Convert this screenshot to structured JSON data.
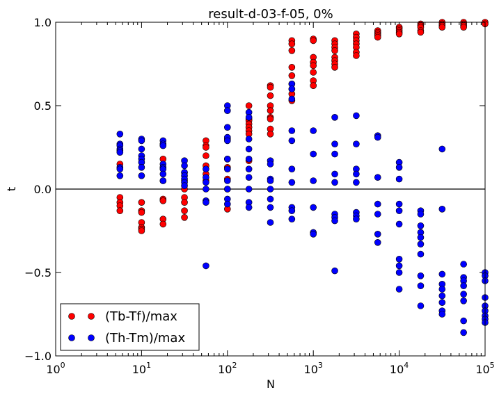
{
  "chart_data": {
    "type": "scatter",
    "title": "result-d-03-f-05, 0%",
    "xlabel": "N",
    "ylabel": "t",
    "xscale": "log",
    "xlim": [
      1,
      100000
    ],
    "ylim": [
      -1.0,
      1.0
    ],
    "x_tick_values": [
      1,
      10,
      100,
      1000,
      10000,
      100000
    ],
    "x_tick_labels": [
      {
        "base": "10",
        "exp": "0"
      },
      {
        "base": "10",
        "exp": "1"
      },
      {
        "base": "10",
        "exp": "2"
      },
      {
        "base": "10",
        "exp": "3"
      },
      {
        "base": "10",
        "exp": "4"
      },
      {
        "base": "10",
        "exp": "5"
      }
    ],
    "y_tick_values": [
      -1.0,
      -0.5,
      0.0,
      0.5,
      1.0
    ],
    "y_tick_labels": [
      "−1.0",
      "−0.5",
      "0.0",
      "0.5",
      "1.0"
    ],
    "reference_line_y": 0,
    "grid": false,
    "legend_position": "lower-left",
    "series": [
      {
        "name": "(Tb-Tf)/max",
        "color": "#ff0000",
        "points": [
          [
            5.6,
            0.15
          ],
          [
            5.6,
            -0.05
          ],
          [
            5.6,
            -0.08
          ],
          [
            5.6,
            -0.1
          ],
          [
            5.6,
            -0.13
          ],
          [
            10,
            -0.08
          ],
          [
            10,
            -0.13
          ],
          [
            10,
            -0.14
          ],
          [
            10,
            -0.2
          ],
          [
            10,
            -0.23
          ],
          [
            10,
            -0.24
          ],
          [
            10,
            -0.25
          ],
          [
            17.8,
            0.18
          ],
          [
            17.8,
            0.05
          ],
          [
            17.8,
            -0.06
          ],
          [
            17.8,
            -0.07
          ],
          [
            17.8,
            -0.18
          ],
          [
            17.8,
            -0.21
          ],
          [
            31.6,
            0.1
          ],
          [
            31.6,
            0.05
          ],
          [
            31.6,
            0.0
          ],
          [
            31.6,
            -0.05
          ],
          [
            31.6,
            -0.08
          ],
          [
            31.6,
            -0.13
          ],
          [
            31.6,
            -0.17
          ],
          [
            56.2,
            0.29
          ],
          [
            56.2,
            0.26
          ],
          [
            56.2,
            0.25
          ],
          [
            56.2,
            0.2
          ],
          [
            56.2,
            0.14
          ],
          [
            56.2,
            0.09
          ],
          [
            56.2,
            0.05
          ],
          [
            100,
            0.3
          ],
          [
            100,
            0.18
          ],
          [
            100,
            0.13
          ],
          [
            100,
            0.06
          ],
          [
            100,
            0.0
          ],
          [
            100,
            -0.12
          ],
          [
            177.8,
            0.5
          ],
          [
            177.8,
            0.42
          ],
          [
            177.8,
            0.41
          ],
          [
            177.8,
            0.39
          ],
          [
            177.8,
            0.37
          ],
          [
            177.8,
            0.35
          ],
          [
            177.8,
            0.33
          ],
          [
            177.8,
            0.17
          ],
          [
            316.2,
            0.62
          ],
          [
            316.2,
            0.61
          ],
          [
            316.2,
            0.56
          ],
          [
            316.2,
            0.5
          ],
          [
            316.2,
            0.47
          ],
          [
            316.2,
            0.43
          ],
          [
            316.2,
            0.42
          ],
          [
            316.2,
            0.36
          ],
          [
            316.2,
            0.33
          ],
          [
            562.3,
            0.89
          ],
          [
            562.3,
            0.87
          ],
          [
            562.3,
            0.83
          ],
          [
            562.3,
            0.73
          ],
          [
            562.3,
            0.68
          ],
          [
            562.3,
            0.63
          ],
          [
            562.3,
            0.6
          ],
          [
            562.3,
            0.57
          ],
          [
            562.3,
            0.53
          ],
          [
            1000,
            0.9
          ],
          [
            1000,
            0.89
          ],
          [
            1000,
            0.79
          ],
          [
            1000,
            0.76
          ],
          [
            1000,
            0.74
          ],
          [
            1000,
            0.7
          ],
          [
            1000,
            0.65
          ],
          [
            1000,
            0.62
          ],
          [
            1778,
            0.89
          ],
          [
            1778,
            0.87
          ],
          [
            1778,
            0.85
          ],
          [
            1778,
            0.83
          ],
          [
            1778,
            0.79
          ],
          [
            1778,
            0.77
          ],
          [
            1778,
            0.75
          ],
          [
            1778,
            0.73
          ],
          [
            3162,
            0.93
          ],
          [
            3162,
            0.91
          ],
          [
            3162,
            0.89
          ],
          [
            3162,
            0.87
          ],
          [
            3162,
            0.85
          ],
          [
            3162,
            0.82
          ],
          [
            3162,
            0.8
          ],
          [
            5623,
            0.95
          ],
          [
            5623,
            0.94
          ],
          [
            5623,
            0.93
          ],
          [
            5623,
            0.92
          ],
          [
            5623,
            0.91
          ],
          [
            10000,
            0.97
          ],
          [
            10000,
            0.96
          ],
          [
            10000,
            0.95
          ],
          [
            10000,
            0.94
          ],
          [
            10000,
            0.93
          ],
          [
            17783,
            0.99
          ],
          [
            17783,
            0.98
          ],
          [
            17783,
            0.97
          ],
          [
            17783,
            0.95
          ],
          [
            17783,
            0.94
          ],
          [
            31623,
            1.0
          ],
          [
            31623,
            0.99
          ],
          [
            31623,
            0.98
          ],
          [
            31623,
            0.97
          ],
          [
            56234,
            1.0
          ],
          [
            56234,
            0.99
          ],
          [
            56234,
            0.98
          ],
          [
            56234,
            0.97
          ],
          [
            100000,
            1.0
          ],
          [
            100000,
            0.99
          ]
        ]
      },
      {
        "name": "(Th-Tm)/max",
        "color": "#0000ff",
        "points": [
          [
            5.6,
            0.33
          ],
          [
            5.6,
            0.27
          ],
          [
            5.6,
            0.26
          ],
          [
            5.6,
            0.24
          ],
          [
            5.6,
            0.23
          ],
          [
            5.6,
            0.22
          ],
          [
            5.6,
            0.13
          ],
          [
            5.6,
            0.12
          ],
          [
            5.6,
            0.08
          ],
          [
            10,
            0.3
          ],
          [
            10,
            0.29
          ],
          [
            10,
            0.24
          ],
          [
            10,
            0.2
          ],
          [
            10,
            0.18
          ],
          [
            10,
            0.16
          ],
          [
            10,
            0.13
          ],
          [
            10,
            0.08
          ],
          [
            17.8,
            0.29
          ],
          [
            17.8,
            0.27
          ],
          [
            17.8,
            0.26
          ],
          [
            17.8,
            0.15
          ],
          [
            17.8,
            0.13
          ],
          [
            17.8,
            0.12
          ],
          [
            17.8,
            0.09
          ],
          [
            17.8,
            0.05
          ],
          [
            31.6,
            0.17
          ],
          [
            31.6,
            0.14
          ],
          [
            31.6,
            0.1
          ],
          [
            31.6,
            0.08
          ],
          [
            31.6,
            0.06
          ],
          [
            31.6,
            0.04
          ],
          [
            31.6,
            0.02
          ],
          [
            56.2,
            0.12
          ],
          [
            56.2,
            0.07
          ],
          [
            56.2,
            0.04
          ],
          [
            56.2,
            0.0
          ],
          [
            56.2,
            -0.07
          ],
          [
            56.2,
            -0.08
          ],
          [
            56.2,
            -0.46
          ],
          [
            100,
            0.5
          ],
          [
            100,
            0.47
          ],
          [
            100,
            0.37
          ],
          [
            100,
            0.31
          ],
          [
            100,
            0.29
          ],
          [
            100,
            0.18
          ],
          [
            100,
            0.12
          ],
          [
            100,
            0.05
          ],
          [
            100,
            0.0
          ],
          [
            100,
            -0.06
          ],
          [
            100,
            -0.09
          ],
          [
            177.8,
            0.46
          ],
          [
            177.8,
            0.43
          ],
          [
            177.8,
            0.3
          ],
          [
            177.8,
            0.24
          ],
          [
            177.8,
            0.18
          ],
          [
            177.8,
            0.12
          ],
          [
            177.8,
            0.07
          ],
          [
            177.8,
            0.0
          ],
          [
            177.8,
            -0.08
          ],
          [
            177.8,
            -0.11
          ],
          [
            316.2,
            0.17
          ],
          [
            316.2,
            0.15
          ],
          [
            316.2,
            0.06
          ],
          [
            316.2,
            0.05
          ],
          [
            316.2,
            0.0
          ],
          [
            316.2,
            -0.06
          ],
          [
            316.2,
            -0.11
          ],
          [
            316.2,
            -0.2
          ],
          [
            562.3,
            0.63
          ],
          [
            562.3,
            0.6
          ],
          [
            562.3,
            0.54
          ],
          [
            562.3,
            0.35
          ],
          [
            562.3,
            0.29
          ],
          [
            562.3,
            0.12
          ],
          [
            562.3,
            0.04
          ],
          [
            562.3,
            -0.11
          ],
          [
            562.3,
            -0.13
          ],
          [
            562.3,
            -0.18
          ],
          [
            1000,
            0.35
          ],
          [
            1000,
            0.21
          ],
          [
            1000,
            0.05
          ],
          [
            1000,
            -0.11
          ],
          [
            1000,
            -0.26
          ],
          [
            1000,
            -0.27
          ],
          [
            1778,
            0.43
          ],
          [
            1778,
            0.27
          ],
          [
            1778,
            0.21
          ],
          [
            1778,
            0.09
          ],
          [
            1778,
            0.04
          ],
          [
            1778,
            -0.15
          ],
          [
            1778,
            -0.17
          ],
          [
            1778,
            -0.19
          ],
          [
            1778,
            -0.49
          ],
          [
            3162,
            0.44
          ],
          [
            3162,
            0.27
          ],
          [
            3162,
            0.12
          ],
          [
            3162,
            0.09
          ],
          [
            3162,
            0.04
          ],
          [
            3162,
            -0.14
          ],
          [
            3162,
            -0.16
          ],
          [
            3162,
            -0.18
          ],
          [
            5623,
            0.32
          ],
          [
            5623,
            0.31
          ],
          [
            5623,
            0.07
          ],
          [
            5623,
            -0.09
          ],
          [
            5623,
            -0.15
          ],
          [
            5623,
            -0.27
          ],
          [
            5623,
            -0.32
          ],
          [
            10000,
            0.16
          ],
          [
            10000,
            0.13
          ],
          [
            10000,
            0.06
          ],
          [
            10000,
            -0.09
          ],
          [
            10000,
            -0.13
          ],
          [
            10000,
            -0.21
          ],
          [
            10000,
            -0.42
          ],
          [
            10000,
            -0.46
          ],
          [
            10000,
            -0.5
          ],
          [
            10000,
            -0.6
          ],
          [
            17783,
            -0.13
          ],
          [
            17783,
            -0.15
          ],
          [
            17783,
            -0.22
          ],
          [
            17783,
            -0.26
          ],
          [
            17783,
            -0.29
          ],
          [
            17783,
            -0.33
          ],
          [
            17783,
            -0.39
          ],
          [
            17783,
            -0.52
          ],
          [
            17783,
            -0.58
          ],
          [
            17783,
            -0.7
          ],
          [
            31623,
            0.24
          ],
          [
            31623,
            -0.12
          ],
          [
            31623,
            -0.51
          ],
          [
            31623,
            -0.57
          ],
          [
            31623,
            -0.6
          ],
          [
            31623,
            -0.64
          ],
          [
            31623,
            -0.68
          ],
          [
            31623,
            -0.73
          ],
          [
            31623,
            -0.75
          ],
          [
            56234,
            -0.45
          ],
          [
            56234,
            -0.53
          ],
          [
            56234,
            -0.55
          ],
          [
            56234,
            -0.58
          ],
          [
            56234,
            -0.63
          ],
          [
            56234,
            -0.67
          ],
          [
            56234,
            -0.79
          ],
          [
            56234,
            -0.86
          ],
          [
            100000,
            -0.5
          ],
          [
            100000,
            -0.52
          ],
          [
            100000,
            -0.55
          ],
          [
            100000,
            -0.65
          ],
          [
            100000,
            -0.7
          ],
          [
            100000,
            -0.73
          ],
          [
            100000,
            -0.76
          ],
          [
            100000,
            -0.78
          ],
          [
            100000,
            -0.8
          ]
        ]
      }
    ]
  }
}
